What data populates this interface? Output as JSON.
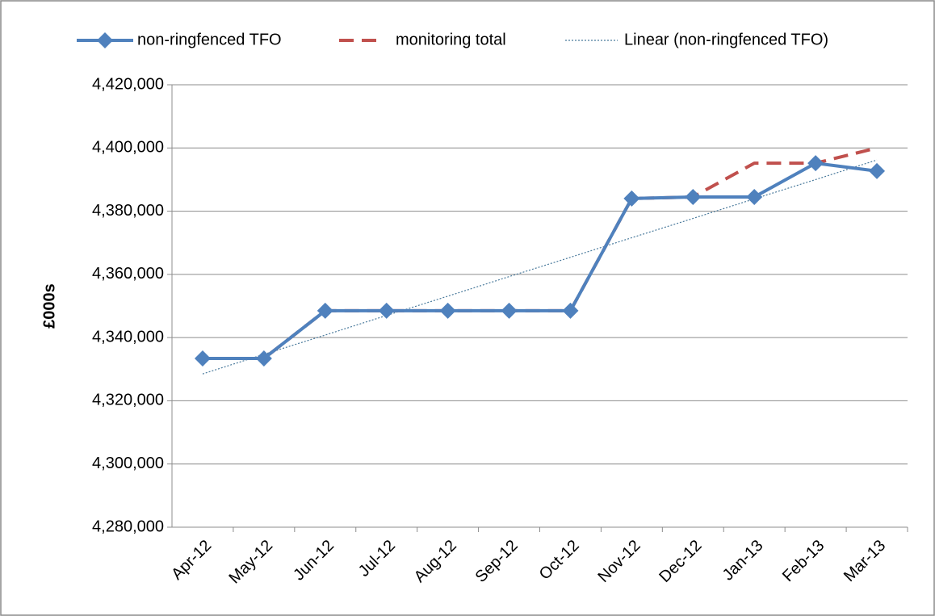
{
  "chart_data": {
    "type": "line",
    "ylabel": "£000s",
    "categories": [
      "Apr-12",
      "May-12",
      "Jun-12",
      "Jul-12",
      "Aug-12",
      "Sep-12",
      "Oct-12",
      "Nov-12",
      "Dec-12",
      "Jan-13",
      "Feb-13",
      "Mar-13"
    ],
    "series": [
      {
        "name": "non-ringfenced TFO",
        "color": "#4f81bd",
        "style": "solid",
        "marker": "diamond",
        "values": [
          4333400,
          4333400,
          4348500,
          4348500,
          4348500,
          4348500,
          4348500,
          4384000,
          4384500,
          4384500,
          4395200,
          4392700
        ]
      },
      {
        "name": "monitoring total",
        "color": "#c0504d",
        "style": "dashed",
        "marker": "none",
        "values": [
          4333400,
          4333400,
          4348500,
          4348500,
          4348500,
          4348500,
          4348500,
          4384000,
          4384500,
          4395200,
          4395200,
          4400000
        ]
      },
      {
        "name": "Linear (non-ringfenced TFO)",
        "color": "#4a7a9c",
        "style": "dotted",
        "marker": "none",
        "values": [
          4328500,
          4334700,
          4340800,
          4347000,
          4353100,
          4359300,
          4365400,
          4371600,
          4377700,
          4383900,
          4390000,
          4396200
        ]
      }
    ],
    "ylim": [
      4280000,
      4420000
    ],
    "yticks": [
      {
        "value": 4280000,
        "label": "4,280,000"
      },
      {
        "value": 4300000,
        "label": "4,300,000"
      },
      {
        "value": 4320000,
        "label": "4,320,000"
      },
      {
        "value": 4340000,
        "label": "4,340,000"
      },
      {
        "value": 4360000,
        "label": "4,360,000"
      },
      {
        "value": 4380000,
        "label": "4,380,000"
      },
      {
        "value": 4400000,
        "label": "4,400,000"
      },
      {
        "value": 4420000,
        "label": "4,420,000"
      }
    ],
    "grid": true,
    "legend": "top"
  }
}
